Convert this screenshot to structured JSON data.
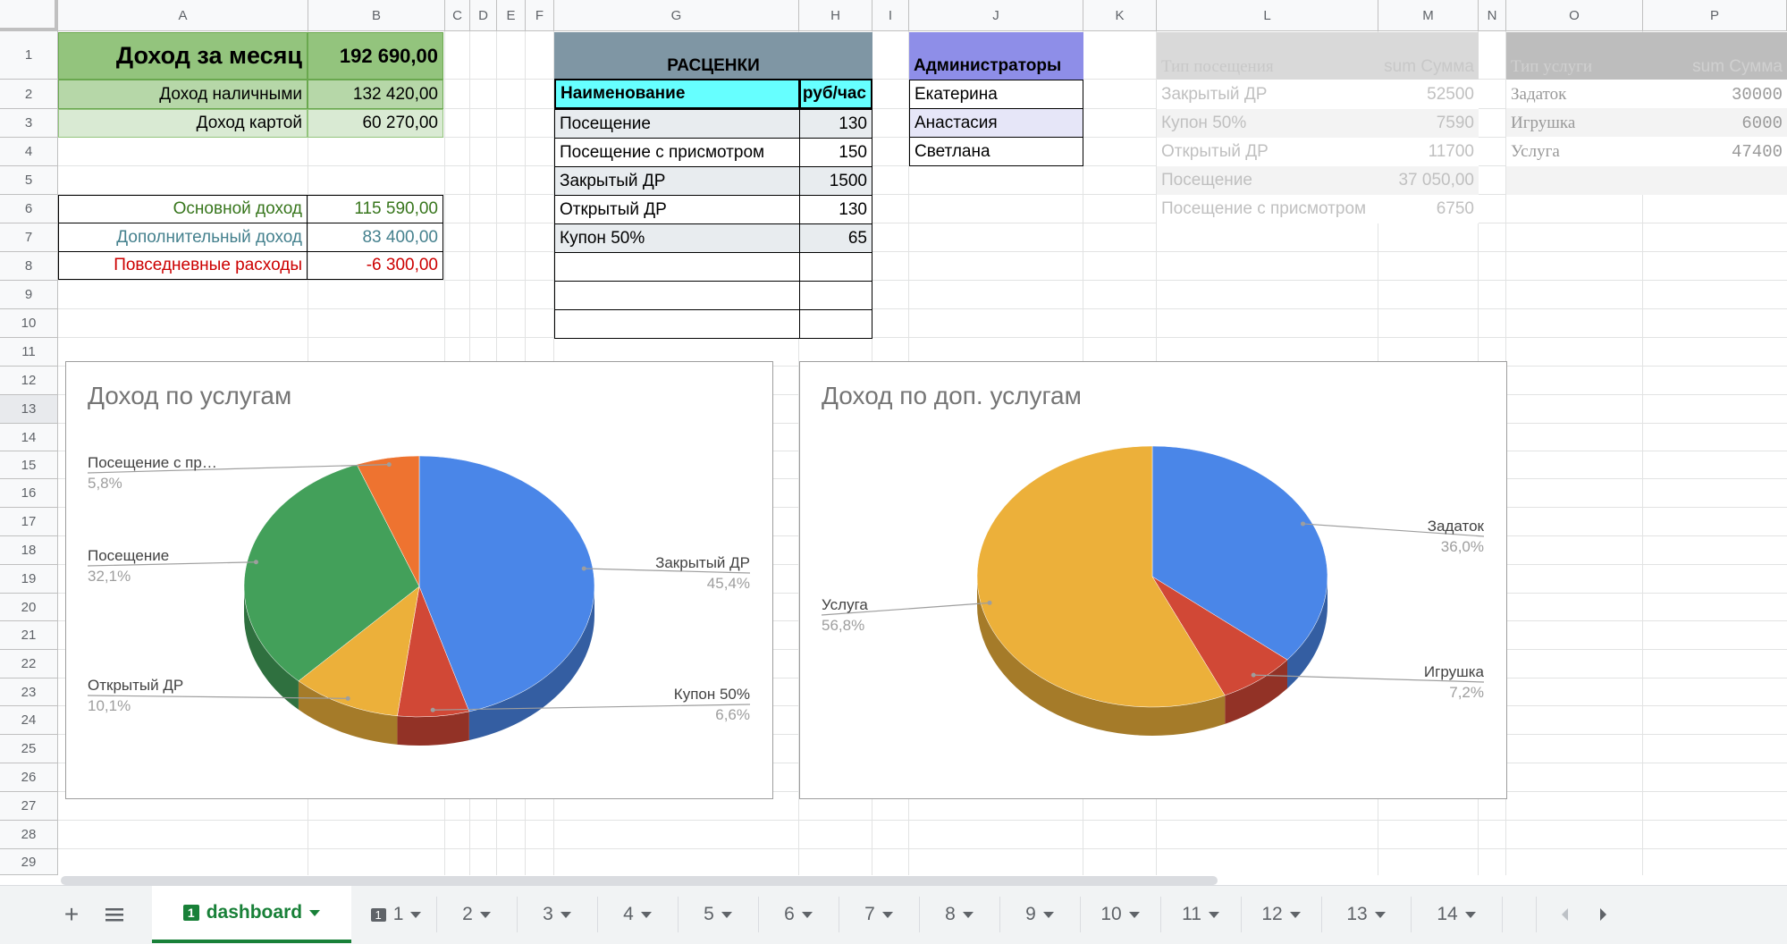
{
  "columns": [
    "A",
    "B",
    "C",
    "D",
    "E",
    "F",
    "G",
    "H",
    "I",
    "J",
    "K",
    "L",
    "M",
    "N",
    "O",
    "P"
  ],
  "rows": [
    "1",
    "2",
    "3",
    "4",
    "5",
    "6",
    "7",
    "8",
    "9",
    "10",
    "11",
    "12",
    "13",
    "14",
    "15",
    "16",
    "17",
    "18",
    "19",
    "20",
    "21",
    "22",
    "23",
    "24",
    "25",
    "26",
    "27",
    "28",
    "29"
  ],
  "summary": {
    "month_income_label": "Доход за месяц",
    "month_income_value": "192 690,00",
    "cash_label": "Доход наличными",
    "cash_value": "132 420,00",
    "card_label": "Доход картой",
    "card_value": "60 270,00",
    "main_label": "Основной доход",
    "main_value": "115 590,00",
    "extra_label": "Дополнительный доход",
    "extra_value": "83 400,00",
    "expense_label": "Повседневные расходы",
    "expense_value": "-6 300,00"
  },
  "prices": {
    "title": "РАСЦЕНКИ",
    "header_name": "Наименование",
    "header_rate": "руб/час",
    "items": [
      {
        "name": "Посещение",
        "rate": "130"
      },
      {
        "name": "Посещение с присмотром",
        "rate": "150"
      },
      {
        "name": "Закрытый ДР",
        "rate": "1500"
      },
      {
        "name": "Открытый ДР",
        "rate": "130"
      },
      {
        "name": "Купон 50%",
        "rate": "65"
      }
    ]
  },
  "admins": {
    "title": "Администраторы",
    "names": [
      "Екатерина",
      "Анастасия",
      "Светлана"
    ]
  },
  "pivot_visits": {
    "header_type": "Тип посещения",
    "header_sum": "sum Сумма",
    "rows": [
      {
        "type": "Закрытый ДР",
        "sum": "52500"
      },
      {
        "type": "Купон 50%",
        "sum": "7590"
      },
      {
        "type": "Открытый ДР",
        "sum": "11700"
      },
      {
        "type": "Посещение",
        "sum": "37 050,00"
      },
      {
        "type": "Посещение с присмотром",
        "sum": "6750"
      }
    ]
  },
  "pivot_services": {
    "header_type": "Тип услуги",
    "header_sum": "sum Сумма",
    "rows": [
      {
        "type": "Задаток",
        "sum": "30000"
      },
      {
        "type": "Игрушка",
        "sum": "6000"
      },
      {
        "type": "Услуга",
        "sum": "47400"
      }
    ]
  },
  "chart_data": [
    {
      "type": "pie",
      "title": "Доход по услугам",
      "slices": [
        {
          "label": "Закрытый ДР",
          "pct_label": "45,4%",
          "value": 45.4,
          "color": "#4a86e8"
        },
        {
          "label": "Купон 50%",
          "pct_label": "6,6%",
          "value": 6.6,
          "color": "#d14836"
        },
        {
          "label": "Открытый ДР",
          "pct_label": "10,1%",
          "value": 10.1,
          "color": "#ecb03a"
        },
        {
          "label": "Посещение",
          "pct_label": "32,1%",
          "value": 32.1,
          "color": "#43a05a"
        },
        {
          "label": "Посещение с пр…",
          "pct_label": "5,8%",
          "value": 5.8,
          "color": "#ee7330"
        }
      ]
    },
    {
      "type": "pie",
      "title": "Доход по доп. услугам",
      "slices": [
        {
          "label": "Задаток",
          "pct_label": "36,0%",
          "value": 36.0,
          "color": "#4a86e8"
        },
        {
          "label": "Игрушка",
          "pct_label": "7,2%",
          "value": 7.2,
          "color": "#d14836"
        },
        {
          "label": "Услуга",
          "pct_label": "56,8%",
          "value": 56.8,
          "color": "#ecb03a"
        }
      ]
    }
  ],
  "tabs": {
    "active_label": "dashboard",
    "active_number": "1",
    "sheet1_number": "1",
    "numbered": [
      "1",
      "2",
      "3",
      "4",
      "5",
      "6",
      "7",
      "8",
      "9",
      "10",
      "11",
      "12",
      "13",
      "14"
    ]
  }
}
